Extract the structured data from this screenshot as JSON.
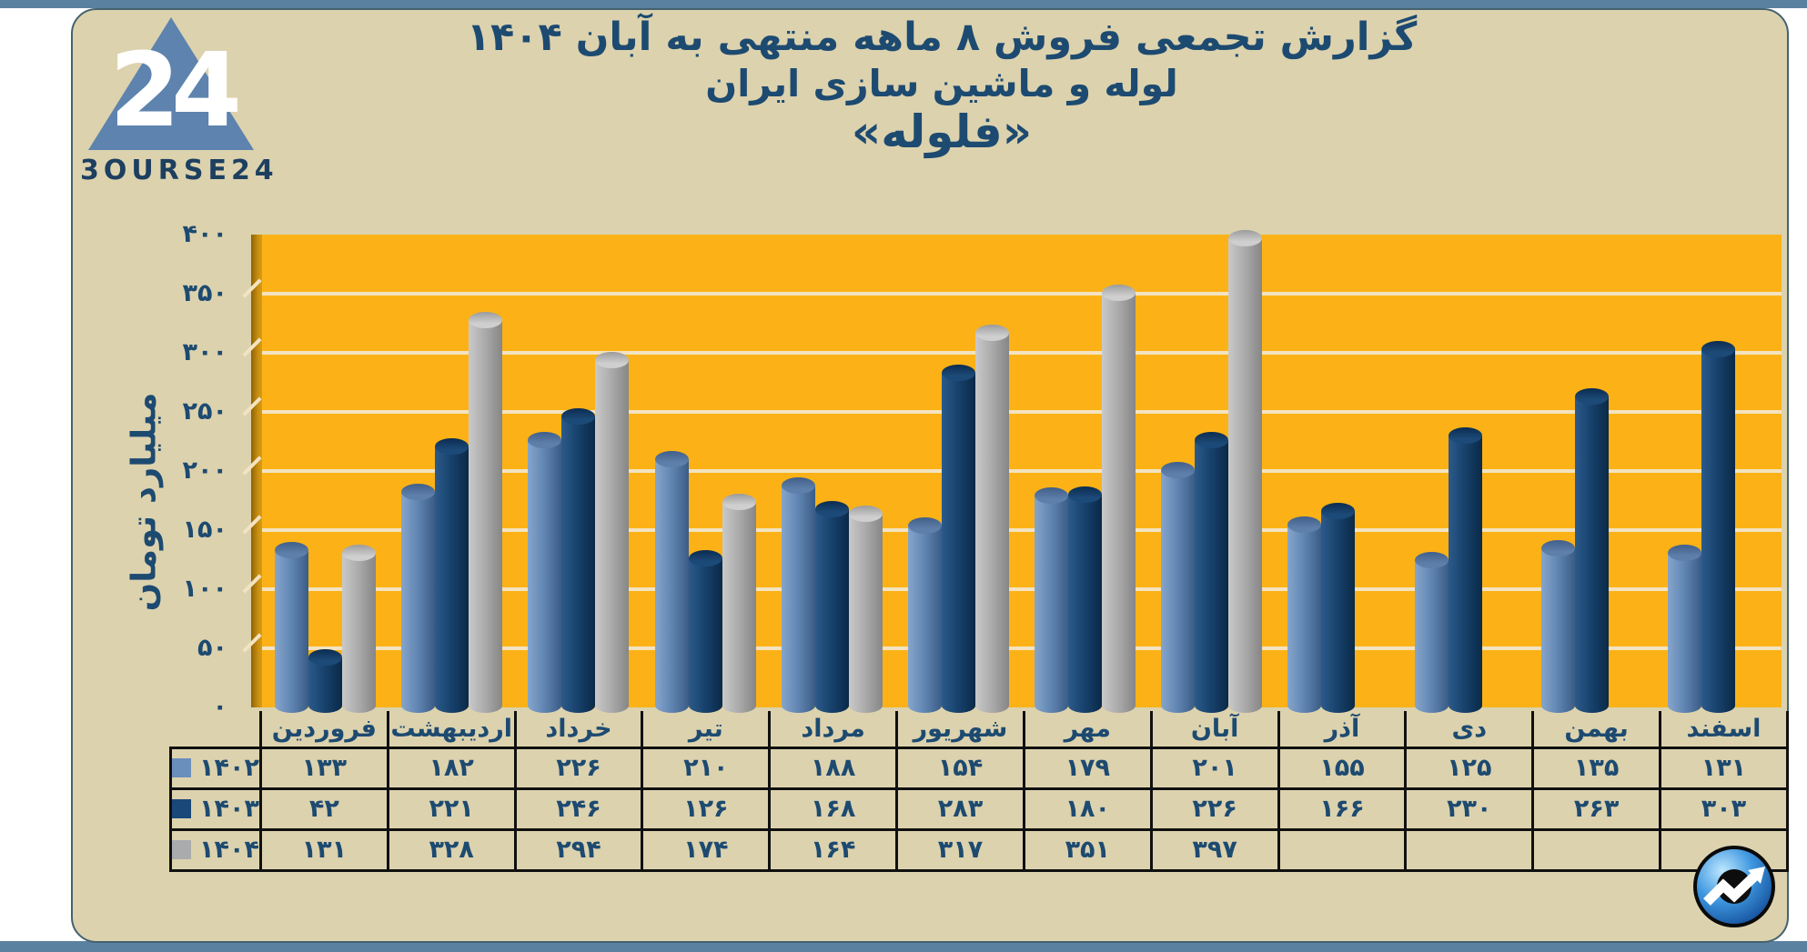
{
  "frame": {
    "outer_background": "#ffffff",
    "strip_color": "#5b81a0",
    "panel_background": "#dcd2ae",
    "panel_border": "#44626f"
  },
  "logo": {
    "brand": "3OURSE24",
    "monogram": "24",
    "triangle_color": "#5d83ae",
    "text_color": "#1d3f60"
  },
  "title": {
    "line1": "گزارش تجمعی فروش ۸ ماهه منتهی به آبان ۱۴۰۴",
    "line2": "لوله و ماشین سازی ایران",
    "line3": "«فلوله»",
    "color": "#1d4a70"
  },
  "chart_data": {
    "type": "bar",
    "title": "گزارش تجمعی فروش ۸ ماهه منتهی به آبان ۱۴۰۴ - لوله و ماشین سازی ایران «فلوله»",
    "xlabel": "",
    "ylabel": "میلیارد تومان",
    "ylim": [
      0,
      400
    ],
    "yticks": [
      0,
      50,
      100,
      150,
      200,
      250,
      300,
      350,
      400
    ],
    "grid": true,
    "legend_position": "table-left",
    "categories": [
      "فروردین",
      "اردیبهشت",
      "خرداد",
      "تیر",
      "مرداد",
      "شهریور",
      "مهر",
      "آبان",
      "آذر",
      "دی",
      "بهمن",
      "اسفند"
    ],
    "series": [
      {
        "name": "۱۴۰۲",
        "year": 1402,
        "color": "#6a8fbc",
        "body_gradient": [
          "#86a5ca",
          "#6488b5",
          "#3a5c86"
        ],
        "cap_gradient": [
          "#5d7fa9",
          "#415f8a"
        ],
        "values": [
          133,
          182,
          226,
          210,
          188,
          154,
          179,
          201,
          155,
          125,
          135,
          131
        ]
      },
      {
        "name": "۱۴۰۳",
        "year": 1403,
        "color": "#1a4878",
        "body_gradient": [
          "#2c5a8a",
          "#18436e",
          "#0a2948"
        ],
        "cap_gradient": [
          "#1c4a78",
          "#0c2c50"
        ],
        "values": [
          42,
          221,
          246,
          126,
          168,
          283,
          180,
          226,
          166,
          230,
          263,
          303
        ]
      },
      {
        "name": "۱۴۰۴",
        "year": 1404,
        "color": "#a9abad",
        "body_gradient": [
          "#c9c9c9",
          "#adadad",
          "#868686"
        ],
        "cap_gradient": [
          "#cfcfcf",
          "#9b9b9b"
        ],
        "values": [
          131,
          328,
          294,
          174,
          164,
          317,
          351,
          397,
          null,
          null,
          null,
          null
        ]
      }
    ],
    "plot_background": "#fcb216",
    "wall_color": "#c68d10",
    "gridline_color": "#f3e3c0",
    "table_border_color": "#101010",
    "text_color": "#1d4a70"
  },
  "watermark_icon": "trend-arrow-circle"
}
